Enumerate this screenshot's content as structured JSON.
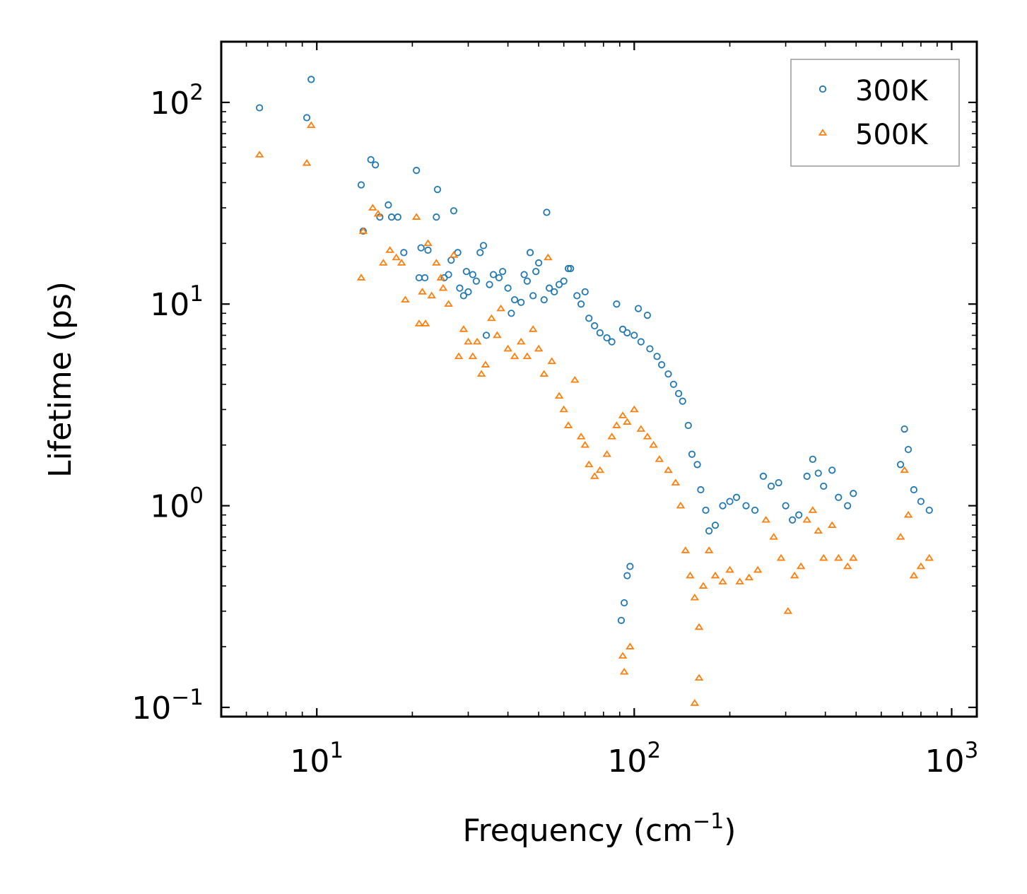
{
  "chart_data": {
    "type": "scatter",
    "title": "",
    "xlabel": "Frequency (cm",
    "xlabel_sup": "−1",
    "xlabel_suffix": ")",
    "ylabel": "Lifetime (ps)",
    "xscale": "log",
    "yscale": "log",
    "xlim": [
      5,
      1200
    ],
    "ylim": [
      0.09,
      200
    ],
    "x_ticks": [
      {
        "base": "10",
        "exp": "1",
        "value": 10
      },
      {
        "base": "10",
        "exp": "2",
        "value": 100
      },
      {
        "base": "10",
        "exp": "3",
        "value": 1000
      }
    ],
    "y_ticks": [
      {
        "base": "10",
        "exp": "−1",
        "value": 0.1
      },
      {
        "base": "10",
        "exp": "0",
        "value": 1
      },
      {
        "base": "10",
        "exp": "1",
        "value": 10
      },
      {
        "base": "10",
        "exp": "2",
        "value": 100
      }
    ],
    "legend": {
      "placement": "top-right"
    },
    "series": [
      {
        "name": "300K",
        "marker": "circle",
        "color": "#1f77b4",
        "points": [
          [
            6.6,
            94
          ],
          [
            9.3,
            84
          ],
          [
            9.6,
            130
          ],
          [
            13.8,
            39
          ],
          [
            14.0,
            23
          ],
          [
            14.8,
            52
          ],
          [
            15.3,
            49
          ],
          [
            15.8,
            27
          ],
          [
            16.8,
            31
          ],
          [
            17.2,
            27
          ],
          [
            18.0,
            27
          ],
          [
            18.8,
            18
          ],
          [
            20.6,
            46
          ],
          [
            21.0,
            13.5
          ],
          [
            21.3,
            19
          ],
          [
            21.9,
            13.5
          ],
          [
            22.4,
            18.5
          ],
          [
            23.8,
            27
          ],
          [
            24.0,
            37
          ],
          [
            25.2,
            13.5
          ],
          [
            26.0,
            14
          ],
          [
            26.5,
            16.5
          ],
          [
            27.0,
            29
          ],
          [
            27.8,
            18
          ],
          [
            28.2,
            12
          ],
          [
            29.0,
            11
          ],
          [
            29.6,
            14.5
          ],
          [
            30.0,
            11.5
          ],
          [
            31.0,
            14
          ],
          [
            31.8,
            13
          ],
          [
            32.7,
            18
          ],
          [
            33.5,
            19.5
          ],
          [
            34.2,
            7
          ],
          [
            35.0,
            12.5
          ],
          [
            36.0,
            14
          ],
          [
            37.5,
            13.5
          ],
          [
            38.5,
            14.5
          ],
          [
            40.0,
            12
          ],
          [
            41.0,
            9
          ],
          [
            42.0,
            10.5
          ],
          [
            44.0,
            10.2
          ],
          [
            45.0,
            14
          ],
          [
            46.0,
            13
          ],
          [
            47.0,
            18
          ],
          [
            48.0,
            11
          ],
          [
            49.0,
            14.5
          ],
          [
            50.0,
            16
          ],
          [
            52.0,
            10.5
          ],
          [
            53.0,
            28.5
          ],
          [
            54.0,
            12
          ],
          [
            56.0,
            11.5
          ],
          [
            58.0,
            12.5
          ],
          [
            60.0,
            13
          ],
          [
            62.0,
            15
          ],
          [
            63.0,
            15
          ],
          [
            66.0,
            11
          ],
          [
            68.0,
            10
          ],
          [
            70.0,
            11.5
          ],
          [
            72.0,
            8.5
          ],
          [
            75.0,
            7.8
          ],
          [
            78.0,
            7.2
          ],
          [
            82.0,
            6.8
          ],
          [
            85.0,
            6.5
          ],
          [
            88.0,
            10
          ],
          [
            92.0,
            7.5
          ],
          [
            95.0,
            7.2
          ],
          [
            100.0,
            7
          ],
          [
            103.0,
            9.5
          ],
          [
            105.0,
            6.5
          ],
          [
            110.0,
            8.8
          ],
          [
            112.0,
            6
          ],
          [
            118.0,
            5.5
          ],
          [
            122.0,
            5
          ],
          [
            128.0,
            4.5
          ],
          [
            133.0,
            4
          ],
          [
            138.0,
            3.6
          ],
          [
            142.0,
            3.3
          ],
          [
            148.0,
            2.5
          ],
          [
            152.0,
            1.8
          ],
          [
            158.0,
            1.6
          ],
          [
            162.0,
            1.2
          ],
          [
            168.0,
            0.95
          ],
          [
            172.0,
            0.75
          ],
          [
            180.0,
            0.8
          ],
          [
            190.0,
            1.0
          ],
          [
            200.0,
            1.05
          ],
          [
            210.0,
            1.1
          ],
          [
            225.0,
            1.0
          ],
          [
            240.0,
            0.95
          ],
          [
            255.0,
            1.4
          ],
          [
            270.0,
            1.25
          ],
          [
            285.0,
            1.3
          ],
          [
            300.0,
            1.0
          ],
          [
            315.0,
            0.85
          ],
          [
            330.0,
            0.9
          ],
          [
            350.0,
            1.4
          ],
          [
            365.0,
            1.7
          ],
          [
            380.0,
            1.45
          ],
          [
            395.0,
            1.25
          ],
          [
            420.0,
            1.5
          ],
          [
            440.0,
            1.1
          ],
          [
            470.0,
            1.0
          ],
          [
            490.0,
            1.15
          ],
          [
            690.0,
            1.6
          ],
          [
            710.0,
            2.4
          ],
          [
            730.0,
            1.9
          ],
          [
            760.0,
            1.2
          ],
          [
            800.0,
            1.05
          ],
          [
            850.0,
            0.95
          ],
          [
            95.0,
            0.45
          ],
          [
            93.0,
            0.33
          ],
          [
            97.0,
            0.5
          ],
          [
            91.0,
            0.27
          ]
        ]
      },
      {
        "name": "500K",
        "marker": "triangle",
        "color": "#ff7f0e",
        "points": [
          [
            6.6,
            55
          ],
          [
            9.3,
            50
          ],
          [
            9.6,
            77
          ],
          [
            13.8,
            13.5
          ],
          [
            14.0,
            23
          ],
          [
            15.0,
            30
          ],
          [
            15.6,
            28
          ],
          [
            16.2,
            16
          ],
          [
            17.0,
            18.5
          ],
          [
            17.8,
            17
          ],
          [
            18.5,
            16
          ],
          [
            19.0,
            10.5
          ],
          [
            20.6,
            27
          ],
          [
            21.0,
            8
          ],
          [
            21.5,
            11.5
          ],
          [
            22.0,
            8
          ],
          [
            22.4,
            20
          ],
          [
            23.0,
            11
          ],
          [
            23.8,
            16
          ],
          [
            24.6,
            13.5
          ],
          [
            25.0,
            12
          ],
          [
            26.0,
            10
          ],
          [
            27.0,
            17.5
          ],
          [
            28.0,
            5.5
          ],
          [
            29.0,
            7.5
          ],
          [
            30.0,
            6.5
          ],
          [
            31.0,
            5.5
          ],
          [
            32.0,
            6.5
          ],
          [
            33.0,
            4.5
          ],
          [
            34.0,
            5
          ],
          [
            35.5,
            8.5
          ],
          [
            37.0,
            7
          ],
          [
            38.0,
            9.5
          ],
          [
            40.0,
            6
          ],
          [
            42.0,
            5.5
          ],
          [
            44.0,
            6.5
          ],
          [
            46.0,
            5.5
          ],
          [
            48.0,
            7.5
          ],
          [
            50.0,
            6
          ],
          [
            52.0,
            4.5
          ],
          [
            53.5,
            17
          ],
          [
            55.0,
            5.2
          ],
          [
            58.0,
            3.5
          ],
          [
            60.0,
            3
          ],
          [
            62.0,
            2.5
          ],
          [
            65.0,
            4.2
          ],
          [
            68.0,
            2.2
          ],
          [
            70.0,
            2
          ],
          [
            72.0,
            1.6
          ],
          [
            75.0,
            1.4
          ],
          [
            78.0,
            1.5
          ],
          [
            82.0,
            1.8
          ],
          [
            85.0,
            2.2
          ],
          [
            88.0,
            2.5
          ],
          [
            92.0,
            2.8
          ],
          [
            95.0,
            2.6
          ],
          [
            100.0,
            3
          ],
          [
            105.0,
            2.4
          ],
          [
            110.0,
            2.2
          ],
          [
            115.0,
            2
          ],
          [
            120.0,
            1.7
          ],
          [
            128.0,
            1.5
          ],
          [
            135.0,
            1.3
          ],
          [
            140.0,
            1.0
          ],
          [
            145.0,
            0.6
          ],
          [
            150.0,
            0.45
          ],
          [
            155.0,
            0.35
          ],
          [
            160.0,
            0.25
          ],
          [
            165.0,
            0.4
          ],
          [
            172.0,
            0.6
          ],
          [
            180.0,
            0.45
          ],
          [
            190.0,
            0.42
          ],
          [
            200.0,
            0.48
          ],
          [
            215.0,
            0.42
          ],
          [
            230.0,
            0.44
          ],
          [
            245.0,
            0.48
          ],
          [
            260.0,
            0.85
          ],
          [
            275.0,
            0.7
          ],
          [
            290.0,
            0.55
          ],
          [
            305.0,
            0.3
          ],
          [
            320.0,
            0.45
          ],
          [
            335.0,
            0.5
          ],
          [
            350.0,
            0.85
          ],
          [
            365.0,
            0.95
          ],
          [
            380.0,
            0.75
          ],
          [
            395.0,
            0.55
          ],
          [
            420.0,
            0.8
          ],
          [
            440.0,
            0.55
          ],
          [
            470.0,
            0.5
          ],
          [
            490.0,
            0.55
          ],
          [
            690.0,
            0.7
          ],
          [
            710.0,
            1.5
          ],
          [
            730.0,
            0.9
          ],
          [
            760.0,
            0.45
          ],
          [
            800.0,
            0.5
          ],
          [
            850.0,
            0.55
          ],
          [
            93.0,
            0.15
          ],
          [
            97.0,
            0.2
          ],
          [
            155.0,
            0.105
          ],
          [
            160.0,
            0.14
          ],
          [
            92.0,
            0.18
          ]
        ]
      }
    ]
  }
}
